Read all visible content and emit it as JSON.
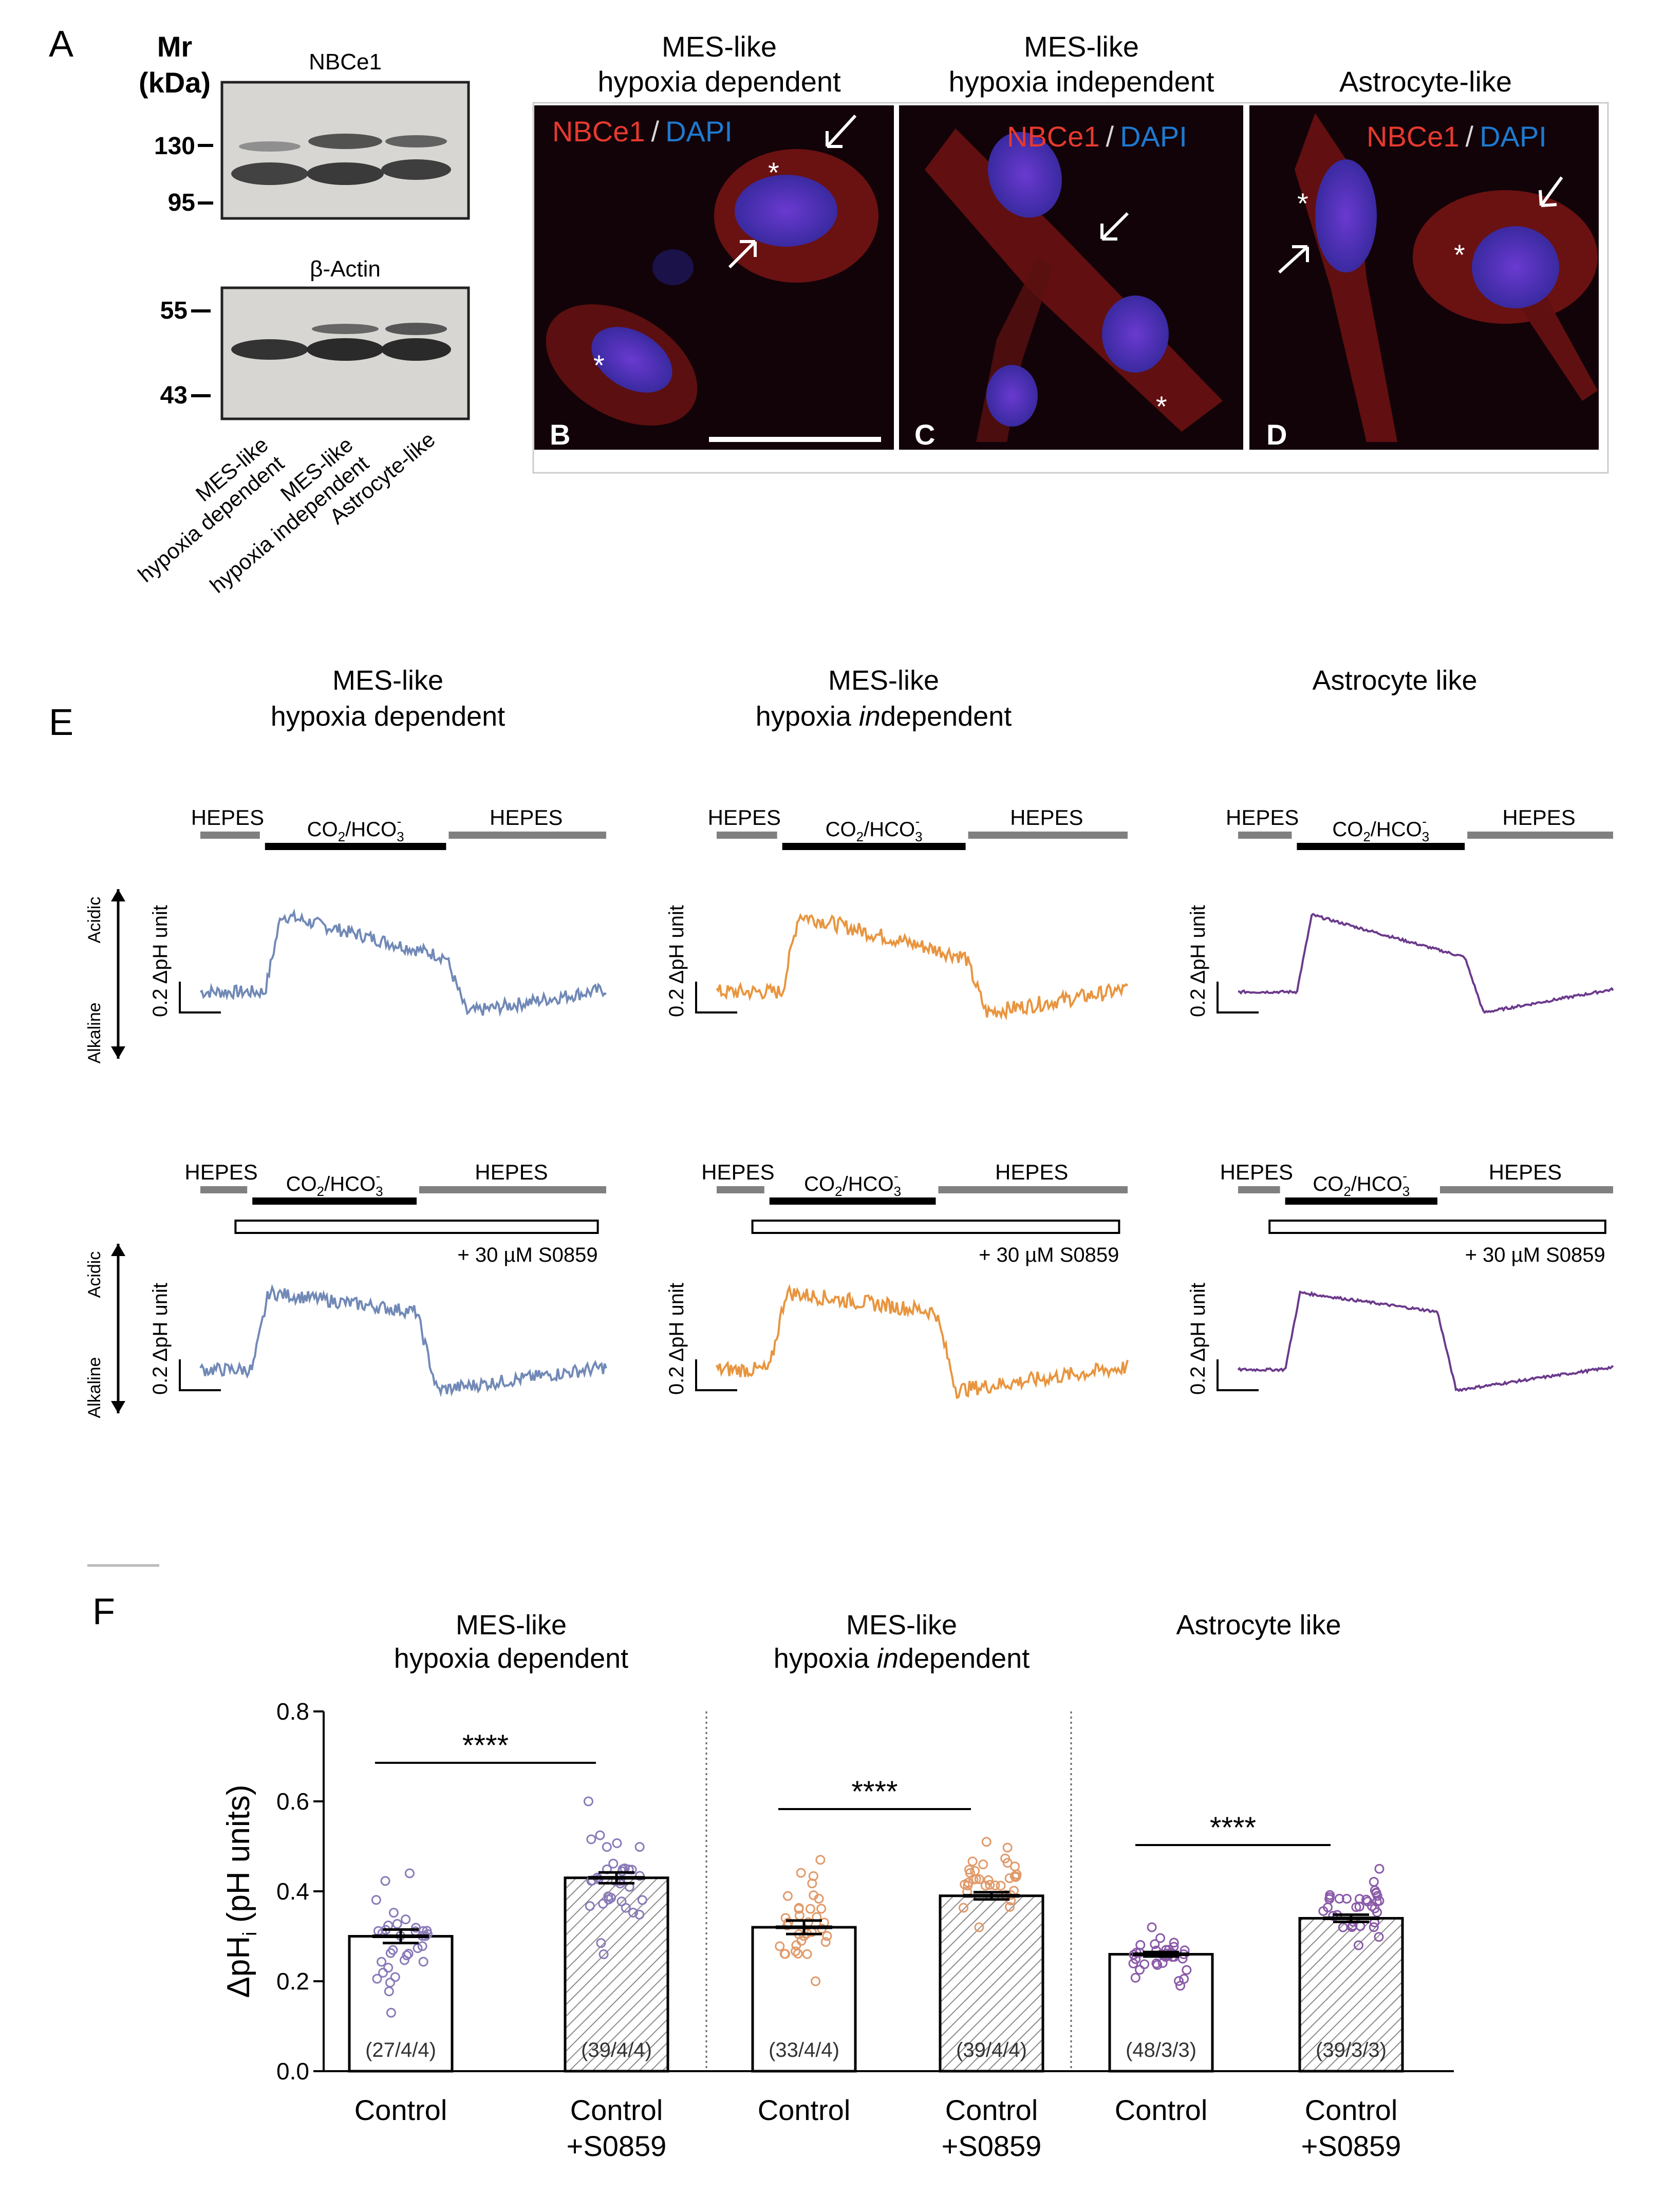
{
  "panels": {
    "A": "A",
    "B": "B",
    "C": "C",
    "D": "D",
    "E": "E",
    "F": "F"
  },
  "blot": {
    "mr_label_1": "Mr",
    "mr_label_2": "(kDa)",
    "top_title": "NBCe1",
    "bottom_title": "β-Actin",
    "top_markers": [
      "130",
      "95"
    ],
    "bottom_markers": [
      "55",
      "43"
    ],
    "lane_labels": [
      {
        "line1": "MES-like",
        "line2": "hypoxia dependent"
      },
      {
        "line1": "MES-like",
        "line2": "hypoxia independent"
      },
      {
        "line1": "Astrocyte-like",
        "line2": ""
      }
    ]
  },
  "micro": {
    "titles": [
      {
        "line1": "MES-like",
        "line2": "hypoxia dependent"
      },
      {
        "line1": "MES-like",
        "line2": "hypoxia independent"
      },
      {
        "line1": "Astrocyte-like",
        "line2": ""
      }
    ],
    "stain_red": "NBCe1",
    "stain_sep": "/",
    "stain_blue": "DAPI",
    "star": "*"
  },
  "traces": {
    "column_titles": [
      {
        "line1": "MES-like",
        "line2": "hypoxia dependent"
      },
      {
        "line1": "MES-like",
        "line2": "hypoxia independent"
      },
      {
        "line1": "Astrocyte like",
        "line2": ""
      }
    ],
    "col2_prefix": "hypoxia ",
    "col2_italic": "in",
    "col2_suffix": "dependent",
    "hepes": "HEPES",
    "co2_main": "CO",
    "co2_sub": "2",
    "co2_slash": "/HCO",
    "co2_sub2": "3",
    "co2_sup": "-",
    "drug": "+ 30 µM S0859",
    "scale": "0.2 ΔpH unit",
    "acidic": "Acidic",
    "alkaline": "Alkaline",
    "colors": [
      "#7189b6",
      "#e8953f",
      "#6b3a8c"
    ]
  },
  "chart_data": {
    "type": "bar",
    "title": "",
    "ylabel_main": "ΔpH",
    "ylabel_sub": "i",
    "ylabel_units": " (pH units)",
    "ylim": [
      0.0,
      0.8
    ],
    "yticks": [
      "0.0",
      "0.2",
      "0.4",
      "0.6",
      "0.8"
    ],
    "groups": [
      {
        "title1": "MES-like",
        "title2": "hypoxia dependent",
        "color": "#8a7ab8"
      },
      {
        "title1": "MES-like",
        "title2_prefix": "hypoxia ",
        "title2_italic": "in",
        "title2_suffix": "dependent",
        "color": "#e19a6a"
      },
      {
        "title1": "Astrocyte like",
        "title2": "",
        "color": "#8a5aa8"
      }
    ],
    "categories": [
      "Control",
      "Control +S0859",
      "Control",
      "Control +S0859",
      "Control",
      "Control +S0859"
    ],
    "cat_line1": [
      "Control",
      "Control",
      "Control",
      "Control",
      "Control",
      "Control"
    ],
    "cat_line2": [
      "",
      "+S0859",
      "",
      "+S0859",
      "",
      "+S0859"
    ],
    "values": [
      0.3,
      0.43,
      0.32,
      0.39,
      0.26,
      0.34
    ],
    "sem": [
      0.015,
      0.012,
      0.015,
      0.008,
      0.005,
      0.008
    ],
    "n_labels": [
      "(27/4/4)",
      "(39/4/4)",
      "(33/4/4)",
      "(39/4/4)",
      "(48/3/3)",
      "(39/3/3)"
    ],
    "points_min": [
      0.13,
      0.26,
      0.2,
      0.32,
      0.19,
      0.28
    ],
    "points_max": [
      0.44,
      0.6,
      0.47,
      0.51,
      0.32,
      0.45
    ],
    "hatched": [
      false,
      true,
      false,
      true,
      false,
      true
    ],
    "significance": [
      "****",
      "****",
      "****"
    ]
  }
}
